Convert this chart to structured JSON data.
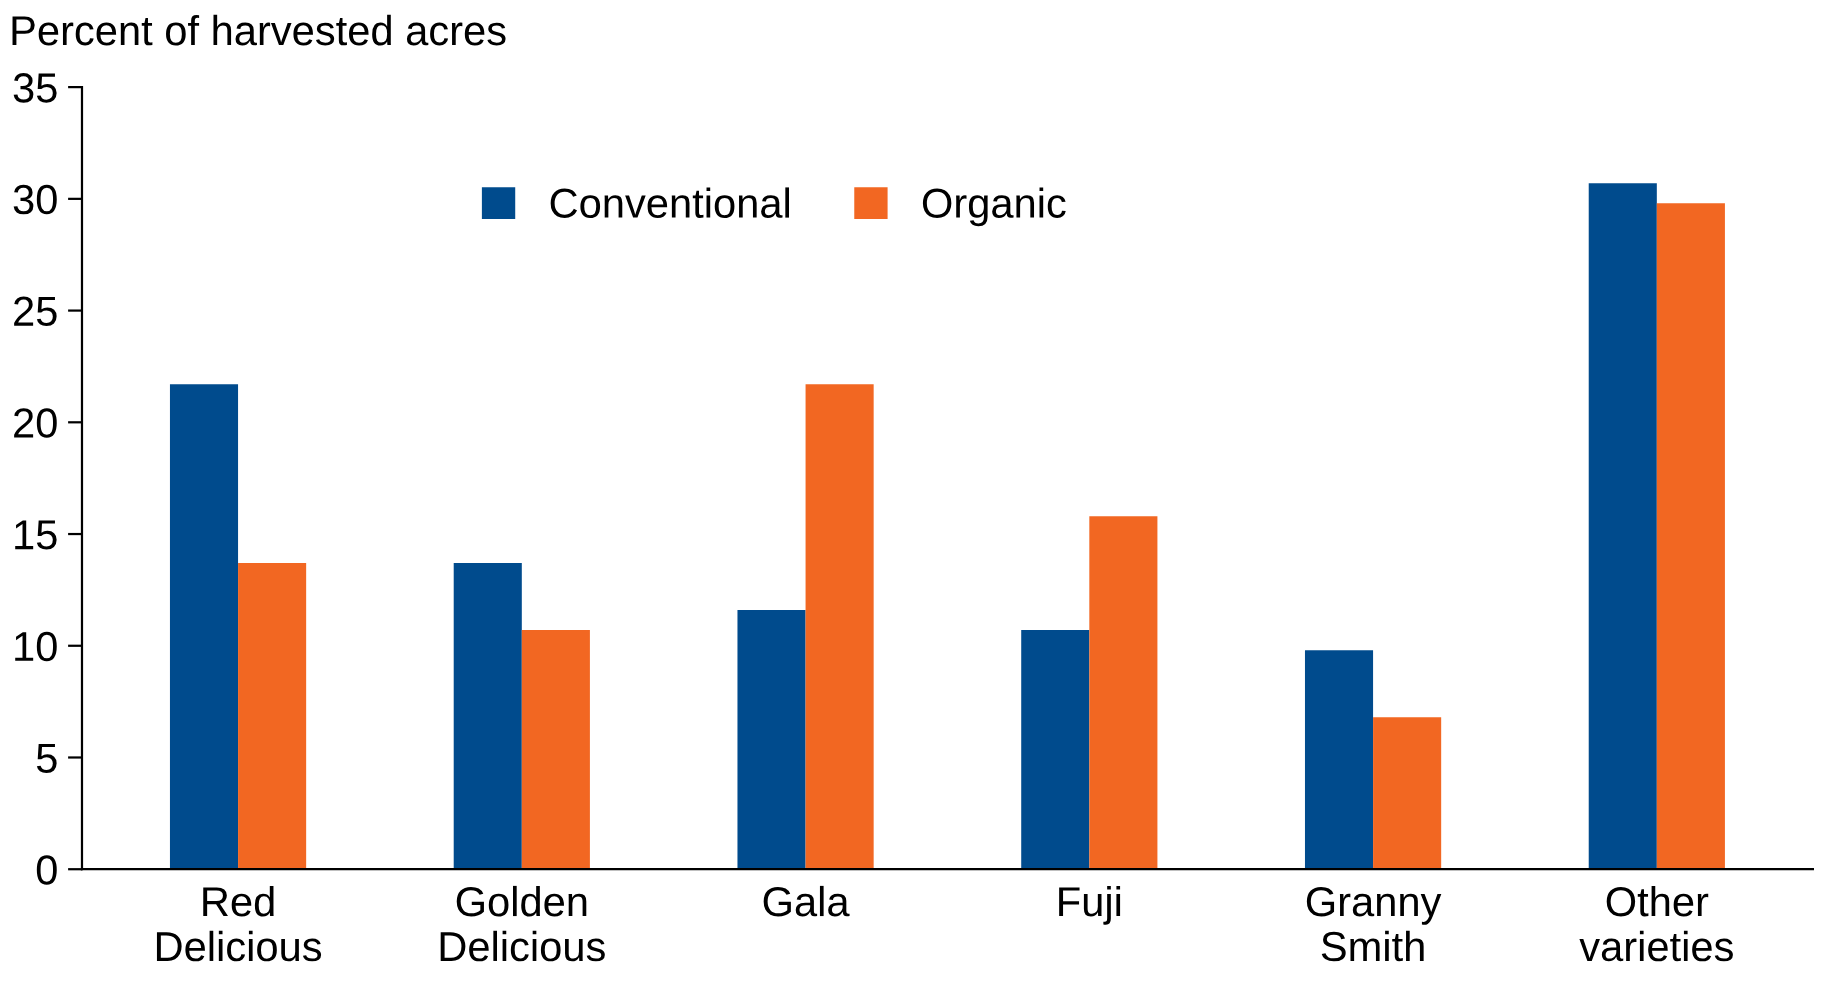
{
  "chart_data": {
    "type": "bar",
    "ylabel": "Percent of harvested acres",
    "categories": [
      "Red\nDelicious",
      "Golden\nDelicious",
      "Gala",
      "Fuji",
      "Granny\nSmith",
      "Other\nvarieties"
    ],
    "series": [
      {
        "name": "Conventional",
        "color": "#004b8d",
        "values": [
          21.7,
          13.7,
          11.6,
          10.7,
          9.8,
          30.7
        ]
      },
      {
        "name": "Organic",
        "color": "#f26722",
        "values": [
          13.7,
          10.7,
          21.7,
          15.8,
          6.8,
          29.8
        ]
      }
    ],
    "ylim": [
      0,
      35
    ],
    "yticks": [
      0,
      5,
      10,
      15,
      20,
      25,
      30,
      35
    ],
    "grid": false,
    "legend": "top"
  }
}
